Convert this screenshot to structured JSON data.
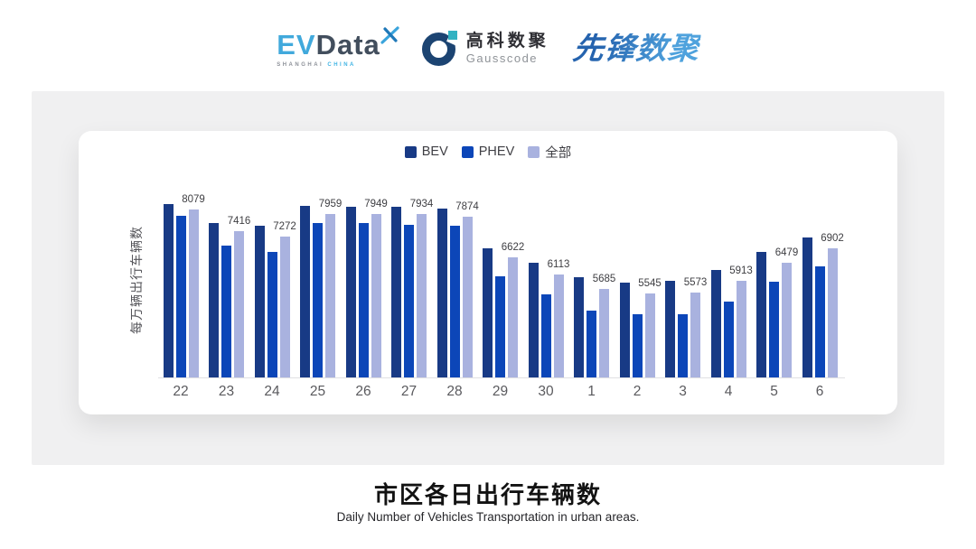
{
  "header": {
    "evdata_logo": {
      "ev": "EV",
      "data": "Data",
      "sub_left": "SHANGHAI",
      "sub_right": "CHINA"
    },
    "gausscode_logo": {
      "cn": "高科数聚",
      "en": "Gausscode"
    },
    "pioneer_logo": {
      "text": "先锋数聚"
    }
  },
  "chart_data": {
    "type": "bar",
    "title": "市区各日出行车辆数",
    "subtitle": "Daily Number of Vehicles Transportation in urban areas.",
    "ylabel": "每万辆出行车辆数",
    "xlabel": "",
    "categories": [
      "22",
      "23",
      "24",
      "25",
      "26",
      "27",
      "28",
      "29",
      "30",
      "1",
      "2",
      "3",
      "4",
      "5",
      "6"
    ],
    "series": [
      {
        "name": "BEV",
        "color": "#183a85",
        "estimated": true,
        "values": [
          8240,
          7670,
          7580,
          8190,
          8160,
          8160,
          8110,
          6920,
          6460,
          6040,
          5880,
          5930,
          6260,
          6810,
          7230
        ]
      },
      {
        "name": "PHEV",
        "color": "#0c46b8",
        "estimated": true,
        "values": [
          7890,
          6980,
          6790,
          7670,
          7670,
          7610,
          7580,
          6070,
          5520,
          5030,
          4920,
          4920,
          5300,
          5910,
          6350
        ]
      },
      {
        "name": "全部",
        "color": "#a9b2df",
        "estimated": false,
        "values": [
          8079,
          7416,
          7272,
          7959,
          7949,
          7934,
          7874,
          6622,
          6113,
          5685,
          5545,
          5573,
          5913,
          6479,
          6902
        ]
      }
    ],
    "data_labels": [
      "8079",
      "7416",
      "7272",
      "7959",
      "7949",
      "7934",
      "7874",
      "6622",
      "6113",
      "5685",
      "5545",
      "5573",
      "5913",
      "6479",
      "6902"
    ],
    "data_labels_series": "全部",
    "ylim": [
      3000,
      8600
    ],
    "grid": false,
    "legend_position": "top-center",
    "axis_color": "#e0e0e3"
  }
}
